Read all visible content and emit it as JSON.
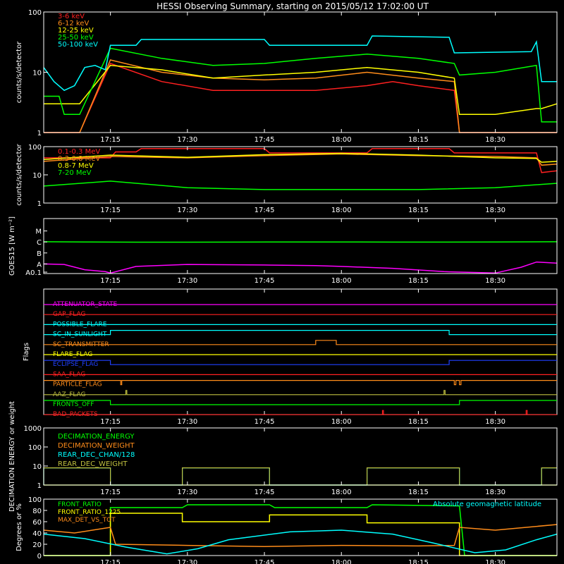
{
  "title": "HESSI Observing Summary, starting on 2015/05/12 17:02:00 UT",
  "time_ticks": [
    "17:15",
    "17:30",
    "17:45",
    "18:00",
    "18:15",
    "18:30"
  ],
  "colors": {
    "red": "#ff2020",
    "orange": "#ff8c1a",
    "yellow": "#ffff00",
    "green": "#00ff00",
    "cyan": "#00ffff",
    "magenta": "#ff00ff",
    "blue": "#2040ff",
    "olive": "#bfbf3f"
  },
  "chart_data": [
    {
      "id": "low-energy-rates",
      "type": "line",
      "ylabel": "counts/s/detector",
      "ylog": true,
      "ylim": [
        1,
        100
      ],
      "ytick_labels": [
        "1",
        "10",
        "100"
      ],
      "xlim": [
        "17:02",
        "18:42"
      ],
      "series": [
        {
          "name": "3-6 keV",
          "color": "red",
          "x": [
            "17:02",
            "17:09",
            "17:15",
            "17:25",
            "17:35",
            "17:45",
            "17:50",
            "17:55",
            "18:05",
            "18:10",
            "18:15",
            "18:22",
            "18:23",
            "18:30",
            "18:38",
            "18:39",
            "18:42"
          ],
          "y": [
            1,
            1,
            14,
            7,
            5,
            5,
            5,
            5,
            6,
            7,
            6,
            5,
            1,
            1,
            1,
            1,
            1
          ]
        },
        {
          "name": "6-12 keV",
          "color": "orange",
          "x": [
            "17:02",
            "17:09",
            "17:15",
            "17:25",
            "17:35",
            "17:45",
            "17:55",
            "18:05",
            "18:15",
            "18:22",
            "18:23",
            "18:30",
            "18:38",
            "18:39",
            "18:42"
          ],
          "y": [
            1,
            1,
            16,
            10,
            8,
            7.5,
            8,
            10,
            8,
            7,
            1,
            1,
            1,
            1,
            1
          ]
        },
        {
          "name": "12-25 keV",
          "color": "yellow",
          "x": [
            "17:02",
            "17:09",
            "17:15",
            "17:25",
            "17:35",
            "17:45",
            "17:55",
            "18:05",
            "18:15",
            "18:22",
            "18:23",
            "18:30",
            "18:38",
            "18:39",
            "18:42"
          ],
          "y": [
            3,
            3,
            13,
            11,
            8,
            9,
            10,
            12,
            10,
            8,
            2,
            2,
            2.5,
            2.5,
            3
          ]
        },
        {
          "name": "25-50 keV",
          "color": "green",
          "x": [
            "17:02",
            "17:05",
            "17:06",
            "17:09",
            "17:15",
            "17:25",
            "17:35",
            "17:45",
            "17:55",
            "18:05",
            "18:15",
            "18:22",
            "18:23",
            "18:30",
            "18:38",
            "18:39",
            "18:42"
          ],
          "y": [
            4,
            4,
            2,
            2,
            25,
            17,
            13,
            14,
            17,
            20,
            17,
            14,
            9,
            10,
            13,
            1.5,
            1.5
          ]
        },
        {
          "name": "50-100 keV",
          "color": "cyan",
          "x": [
            "17:02",
            "17:04",
            "17:06",
            "17:08",
            "17:10",
            "17:12",
            "17:14",
            "17:15",
            "17:20",
            "17:21",
            "17:45",
            "17:46",
            "18:05",
            "18:06",
            "18:21",
            "18:22",
            "18:37",
            "18:38",
            "18:39",
            "18:42"
          ],
          "y": [
            12,
            7,
            5,
            6,
            12,
            13,
            11,
            28,
            28,
            35,
            35,
            28,
            28,
            40,
            38,
            21,
            22,
            32,
            7,
            7
          ]
        }
      ]
    },
    {
      "id": "high-energy-rates",
      "type": "line",
      "ylabel": "counts/s/detector",
      "ylog": true,
      "ylim": [
        1,
        100
      ],
      "ytick_labels": [
        "1",
        "10",
        "100"
      ],
      "xlim": [
        "17:02",
        "18:42"
      ],
      "series": [
        {
          "name": "0.1-0.3 MeV",
          "color": "red",
          "x": [
            "17:02",
            "17:15",
            "17:16",
            "17:20",
            "17:21",
            "17:45",
            "17:46",
            "18:05",
            "18:06",
            "18:21",
            "18:22",
            "18:38",
            "18:39",
            "18:42"
          ],
          "y": [
            40,
            40,
            65,
            65,
            85,
            85,
            60,
            60,
            85,
            85,
            60,
            60,
            12,
            14
          ]
        },
        {
          "name": "0.3-0.8 MeV",
          "color": "orange",
          "x": [
            "17:02",
            "17:15",
            "17:30",
            "17:45",
            "18:00",
            "18:15",
            "18:30",
            "18:38",
            "18:39",
            "18:42"
          ],
          "y": [
            30,
            45,
            40,
            48,
            55,
            48,
            45,
            40,
            22,
            24
          ]
        },
        {
          "name": "0.8-7 MeV",
          "color": "yellow",
          "x": [
            "17:02",
            "17:15",
            "17:30",
            "17:45",
            "18:00",
            "18:15",
            "18:30",
            "18:38",
            "18:39",
            "18:42"
          ],
          "y": [
            35,
            50,
            42,
            52,
            58,
            50,
            40,
            38,
            28,
            30
          ]
        },
        {
          "name": "7-20 MeV",
          "color": "green",
          "x": [
            "17:02",
            "17:15",
            "17:30",
            "17:45",
            "18:00",
            "18:15",
            "18:30",
            "18:42"
          ],
          "y": [
            4,
            6,
            3.5,
            3,
            3,
            3,
            3.5,
            5
          ]
        }
      ]
    },
    {
      "id": "goes",
      "type": "line",
      "ylabel": "GOES15 [W m⁻²]",
      "ytick_labels": [
        "A0.1",
        "A",
        "B",
        "C",
        "M"
      ],
      "xlim": [
        "17:02",
        "18:42"
      ],
      "series": [
        {
          "name": "",
          "color": "green",
          "x": [
            "17:02",
            "17:10",
            "17:20",
            "17:30",
            "17:40",
            "17:50",
            "18:00",
            "18:10",
            "18:20",
            "18:30",
            "18:42"
          ],
          "y": [
            1.05e-06,
            1e-06,
            9.5e-07,
            9.5e-07,
            9.7e-07,
            1e-06,
            1e-06,
            9.7e-07,
            9.7e-07,
            1e-06,
            1.05e-06
          ]
        },
        {
          "name": "",
          "color": "magenta",
          "x": [
            "17:02",
            "17:06",
            "17:10",
            "17:14",
            "17:15",
            "17:20",
            "17:30",
            "17:45",
            "17:55",
            "18:00",
            "18:10",
            "18:20",
            "18:30",
            "18:35",
            "18:38",
            "18:42"
          ],
          "y": [
            1e-08,
            9e-09,
            3e-09,
            2e-09,
            1.5e-09,
            6e-09,
            9e-09,
            8e-09,
            7e-09,
            6e-09,
            4e-09,
            2e-09,
            1.5e-09,
            5e-09,
            1.5e-08,
            1.2e-08
          ]
        }
      ]
    },
    {
      "id": "flags",
      "type": "line",
      "ylabel": "Flags",
      "xlim": [
        "17:02",
        "18:42"
      ],
      "series": [
        {
          "name": "ATTENUATOR_STATE",
          "color": "magenta",
          "x": [
            "17:02",
            "18:42"
          ],
          "y": [
            0,
            0
          ]
        },
        {
          "name": "GAP_FLAG",
          "color": "red",
          "x": [
            "17:02",
            "18:42"
          ],
          "y": [
            0,
            0
          ]
        },
        {
          "name": "POSSIBLE_FLARE",
          "color": "cyan",
          "x": [
            "17:02",
            "18:42"
          ],
          "y": [
            0,
            0
          ]
        },
        {
          "name": "SC_IN_SUNLIGHT",
          "color": "cyan",
          "x": [
            "17:02",
            "17:15",
            "17:15",
            "18:21",
            "18:21",
            "18:42"
          ],
          "y": [
            0,
            0,
            1,
            1,
            0,
            0
          ]
        },
        {
          "name": "SC_TRANSMITTER",
          "color": "orange",
          "x": [
            "17:02",
            "17:55",
            "17:55",
            "17:59",
            "17:59",
            "18:42"
          ],
          "y": [
            0,
            0,
            1,
            1,
            0,
            0
          ]
        },
        {
          "name": "FLARE_FLAG",
          "color": "yellow",
          "x": [
            "17:02",
            "18:42"
          ],
          "y": [
            0,
            0
          ]
        },
        {
          "name": "ECLIPSE_FLAG",
          "color": "blue",
          "x": [
            "17:02",
            "17:15",
            "17:15",
            "18:21",
            "18:21",
            "18:42"
          ],
          "y": [
            1,
            1,
            0,
            0,
            1,
            1
          ]
        },
        {
          "name": "SAA_FLAG",
          "color": "red",
          "x": [
            "17:02",
            "18:42"
          ],
          "y": [
            0,
            0
          ]
        },
        {
          "name": "PARTICLE_FLAG",
          "color": "orange",
          "x": [
            "17:02",
            "17:17",
            "17:17",
            "17:17.2",
            "17:17.2",
            "18:22",
            "18:22",
            "18:22.3",
            "18:22.3",
            "18:23",
            "18:23",
            "18:23.3",
            "18:23.3",
            "18:42"
          ],
          "y": [
            1,
            1,
            0,
            0,
            1,
            1,
            0,
            0,
            1,
            1,
            0,
            0,
            1,
            1
          ]
        },
        {
          "name": "AAZ_FLAG",
          "color": "olive",
          "x": [
            "17:02",
            "17:18",
            "17:18",
            "17:18.2",
            "17:18.2",
            "18:20",
            "18:20",
            "18:20.2",
            "18:20.2",
            "18:42"
          ],
          "y": [
            0,
            0,
            1,
            1,
            0,
            0,
            1,
            1,
            0,
            0
          ]
        },
        {
          "name": "FRONTS_OFF",
          "color": "green",
          "x": [
            "17:02",
            "17:15",
            "17:15",
            "18:23",
            "18:23",
            "18:42"
          ],
          "y": [
            1,
            1,
            0,
            0,
            1,
            1
          ]
        },
        {
          "name": "BAD_PACKETS",
          "color": "red",
          "x": [
            "17:02",
            "18:08",
            "18:08",
            "18:08.2",
            "18:08.2",
            "18:36",
            "18:36",
            "18:36.2",
            "18:36.2",
            "18:42"
          ],
          "y": [
            0,
            0,
            1,
            1,
            0,
            0,
            1,
            1,
            0,
            0
          ]
        }
      ]
    },
    {
      "id": "decimation",
      "type": "line",
      "ylabel": "DECIMATION ENERGY or weight",
      "ylog": true,
      "ylim": [
        1,
        1000
      ],
      "ytick_labels": [
        "1",
        "10",
        "100",
        "1000"
      ],
      "xlim": [
        "17:02",
        "18:42"
      ],
      "series": [
        {
          "name": "DECIMATION_ENERGY",
          "color": "green",
          "x": [
            "17:02",
            "18:42"
          ],
          "y": [
            1,
            1
          ]
        },
        {
          "name": "DECIMATION_WEIGHT",
          "color": "orange",
          "x": [
            "17:02",
            "18:42"
          ],
          "y": [
            1,
            1
          ]
        },
        {
          "name": "REAR_DEC_CHAN/128",
          "color": "cyan",
          "x": [
            "17:02",
            "17:02",
            "17:15",
            "17:15",
            "17:29",
            "17:29",
            "17:46",
            "17:46",
            "18:05",
            "18:05",
            "18:23",
            "18:23",
            "18:39",
            "18:39",
            "18:42"
          ],
          "y": [
            1,
            8,
            8,
            1,
            1,
            8,
            8,
            1,
            1,
            8,
            8,
            1,
            1,
            8,
            8
          ]
        },
        {
          "name": "REAR_DEC_WEIGHT",
          "color": "olive",
          "x": [
            "17:02",
            "17:02",
            "17:15",
            "17:15",
            "17:29",
            "17:29",
            "17:46",
            "17:46",
            "18:05",
            "18:05",
            "18:23",
            "18:23",
            "18:39",
            "18:39",
            "18:42"
          ],
          "y": [
            1,
            8,
            8,
            1,
            1,
            8,
            8,
            1,
            1,
            8,
            8,
            1,
            1,
            8,
            8
          ]
        }
      ]
    },
    {
      "id": "ratios",
      "type": "line",
      "ylabel": "Degrees or %",
      "ylim": [
        0,
        100
      ],
      "ytick_labels": [
        "0",
        "20",
        "40",
        "60",
        "80",
        "100"
      ],
      "xlim": [
        "17:02",
        "18:42"
      ],
      "series": [
        {
          "name": "FRONT_RATIO",
          "color": "green",
          "x": [
            "17:02",
            "17:15",
            "17:15",
            "17:29",
            "17:30",
            "17:46",
            "17:47",
            "18:05",
            "18:06",
            "18:23",
            "18:24",
            "18:42"
          ],
          "y": [
            0,
            0,
            85,
            85,
            90,
            90,
            85,
            85,
            90,
            88,
            0,
            0
          ]
        },
        {
          "name": "FRONT_RATIO_1225",
          "color": "yellow",
          "x": [
            "17:02",
            "17:15",
            "17:15",
            "17:29",
            "17:29",
            "17:46",
            "17:46",
            "18:05",
            "18:05",
            "18:23",
            "18:23",
            "18:42"
          ],
          "y": [
            0,
            0,
            75,
            75,
            60,
            60,
            72,
            72,
            58,
            58,
            0,
            0
          ]
        },
        {
          "name": "MAX_DET_VS_TOT",
          "color": "orange",
          "x": [
            "17:02",
            "17:08",
            "17:15",
            "17:16",
            "17:30",
            "17:45",
            "18:00",
            "18:15",
            "18:22",
            "18:23",
            "18:30",
            "18:42"
          ],
          "y": [
            45,
            40,
            50,
            20,
            18,
            16,
            18,
            17,
            18,
            50,
            45,
            55
          ]
        },
        {
          "name": "Absolute geomagnetic latitude",
          "color": "cyan",
          "x": [
            "17:02",
            "17:10",
            "17:18",
            "17:26",
            "17:32",
            "17:38",
            "17:50",
            "18:00",
            "18:10",
            "18:18",
            "18:26",
            "18:32",
            "18:38",
            "18:42"
          ],
          "y": [
            38,
            30,
            15,
            3,
            12,
            28,
            42,
            45,
            38,
            22,
            5,
            10,
            28,
            38
          ]
        }
      ]
    }
  ]
}
